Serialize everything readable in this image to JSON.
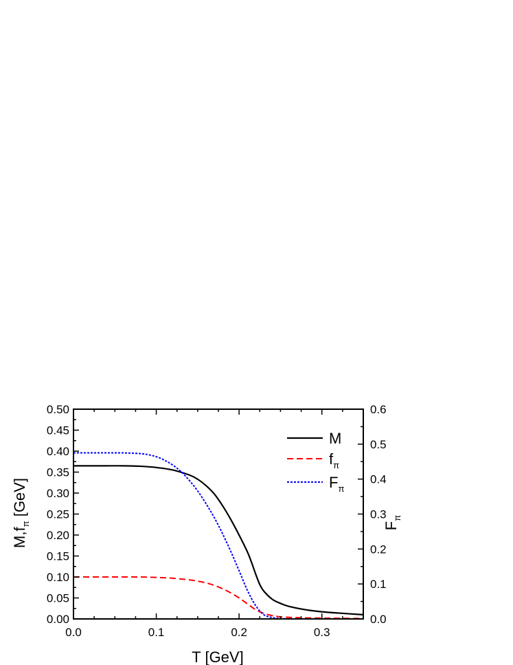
{
  "chart_data": {
    "type": "line",
    "xlabel": "T [GeV]",
    "ylabel_left": {
      "main": "M,f",
      "sub": "π",
      "unit": " [GeV]"
    },
    "ylabel_right": {
      "main": "F",
      "sub": "π"
    },
    "xlim": [
      0.0,
      0.35
    ],
    "ylim_left": [
      0.0,
      0.5
    ],
    "ylim_right": [
      0.0,
      0.6
    ],
    "x_ticks": [
      "0.0",
      "0.1",
      "0.2",
      "0.3"
    ],
    "y_left_ticks": [
      "0.00",
      "0.05",
      "0.10",
      "0.15",
      "0.20",
      "0.25",
      "0.30",
      "0.35",
      "0.40",
      "0.45",
      "0.50"
    ],
    "y_right_ticks": [
      "0.0",
      "0.1",
      "0.2",
      "0.3",
      "0.4",
      "0.5",
      "0.6"
    ],
    "legend_position": "top-right",
    "series": [
      {
        "name": "M",
        "axis": "left",
        "color": "#000000",
        "style": "solid",
        "x": [
          0.0,
          0.02,
          0.04,
          0.06,
          0.08,
          0.1,
          0.12,
          0.14,
          0.15,
          0.16,
          0.17,
          0.18,
          0.19,
          0.2,
          0.21,
          0.215,
          0.22,
          0.225,
          0.23,
          0.24,
          0.25,
          0.26,
          0.28,
          0.3,
          0.32,
          0.35
        ],
        "y": [
          0.365,
          0.365,
          0.365,
          0.365,
          0.364,
          0.361,
          0.355,
          0.343,
          0.333,
          0.318,
          0.298,
          0.27,
          0.237,
          0.2,
          0.16,
          0.135,
          0.107,
          0.082,
          0.066,
          0.047,
          0.037,
          0.03,
          0.022,
          0.017,
          0.014,
          0.01
        ]
      },
      {
        "name": "f",
        "name_sub": "π",
        "axis": "left",
        "color": "#ff0000",
        "style": "dashed",
        "x": [
          0.0,
          0.02,
          0.04,
          0.06,
          0.08,
          0.1,
          0.12,
          0.14,
          0.15,
          0.16,
          0.17,
          0.18,
          0.19,
          0.2,
          0.21,
          0.22,
          0.23,
          0.24,
          0.25,
          0.27,
          0.3,
          0.35
        ],
        "y": [
          0.1,
          0.1,
          0.1,
          0.1,
          0.1,
          0.099,
          0.097,
          0.093,
          0.09,
          0.086,
          0.08,
          0.072,
          0.062,
          0.05,
          0.036,
          0.022,
          0.013,
          0.008,
          0.005,
          0.003,
          0.002,
          0.001
        ]
      },
      {
        "name": "F",
        "name_sub": "π",
        "axis": "right",
        "color": "#0000ff",
        "style": "dotted",
        "x": [
          0.0,
          0.02,
          0.04,
          0.06,
          0.08,
          0.09,
          0.1,
          0.11,
          0.12,
          0.13,
          0.14,
          0.15,
          0.16,
          0.17,
          0.18,
          0.19,
          0.2,
          0.21,
          0.22,
          0.23,
          0.24,
          0.25,
          0.27,
          0.3,
          0.35
        ],
        "y": [
          0.475,
          0.475,
          0.475,
          0.475,
          0.473,
          0.47,
          0.464,
          0.454,
          0.44,
          0.421,
          0.396,
          0.366,
          0.33,
          0.29,
          0.244,
          0.193,
          0.138,
          0.082,
          0.038,
          0.012,
          0.004,
          0.001,
          0.0,
          0.0,
          0.0
        ]
      }
    ]
  }
}
